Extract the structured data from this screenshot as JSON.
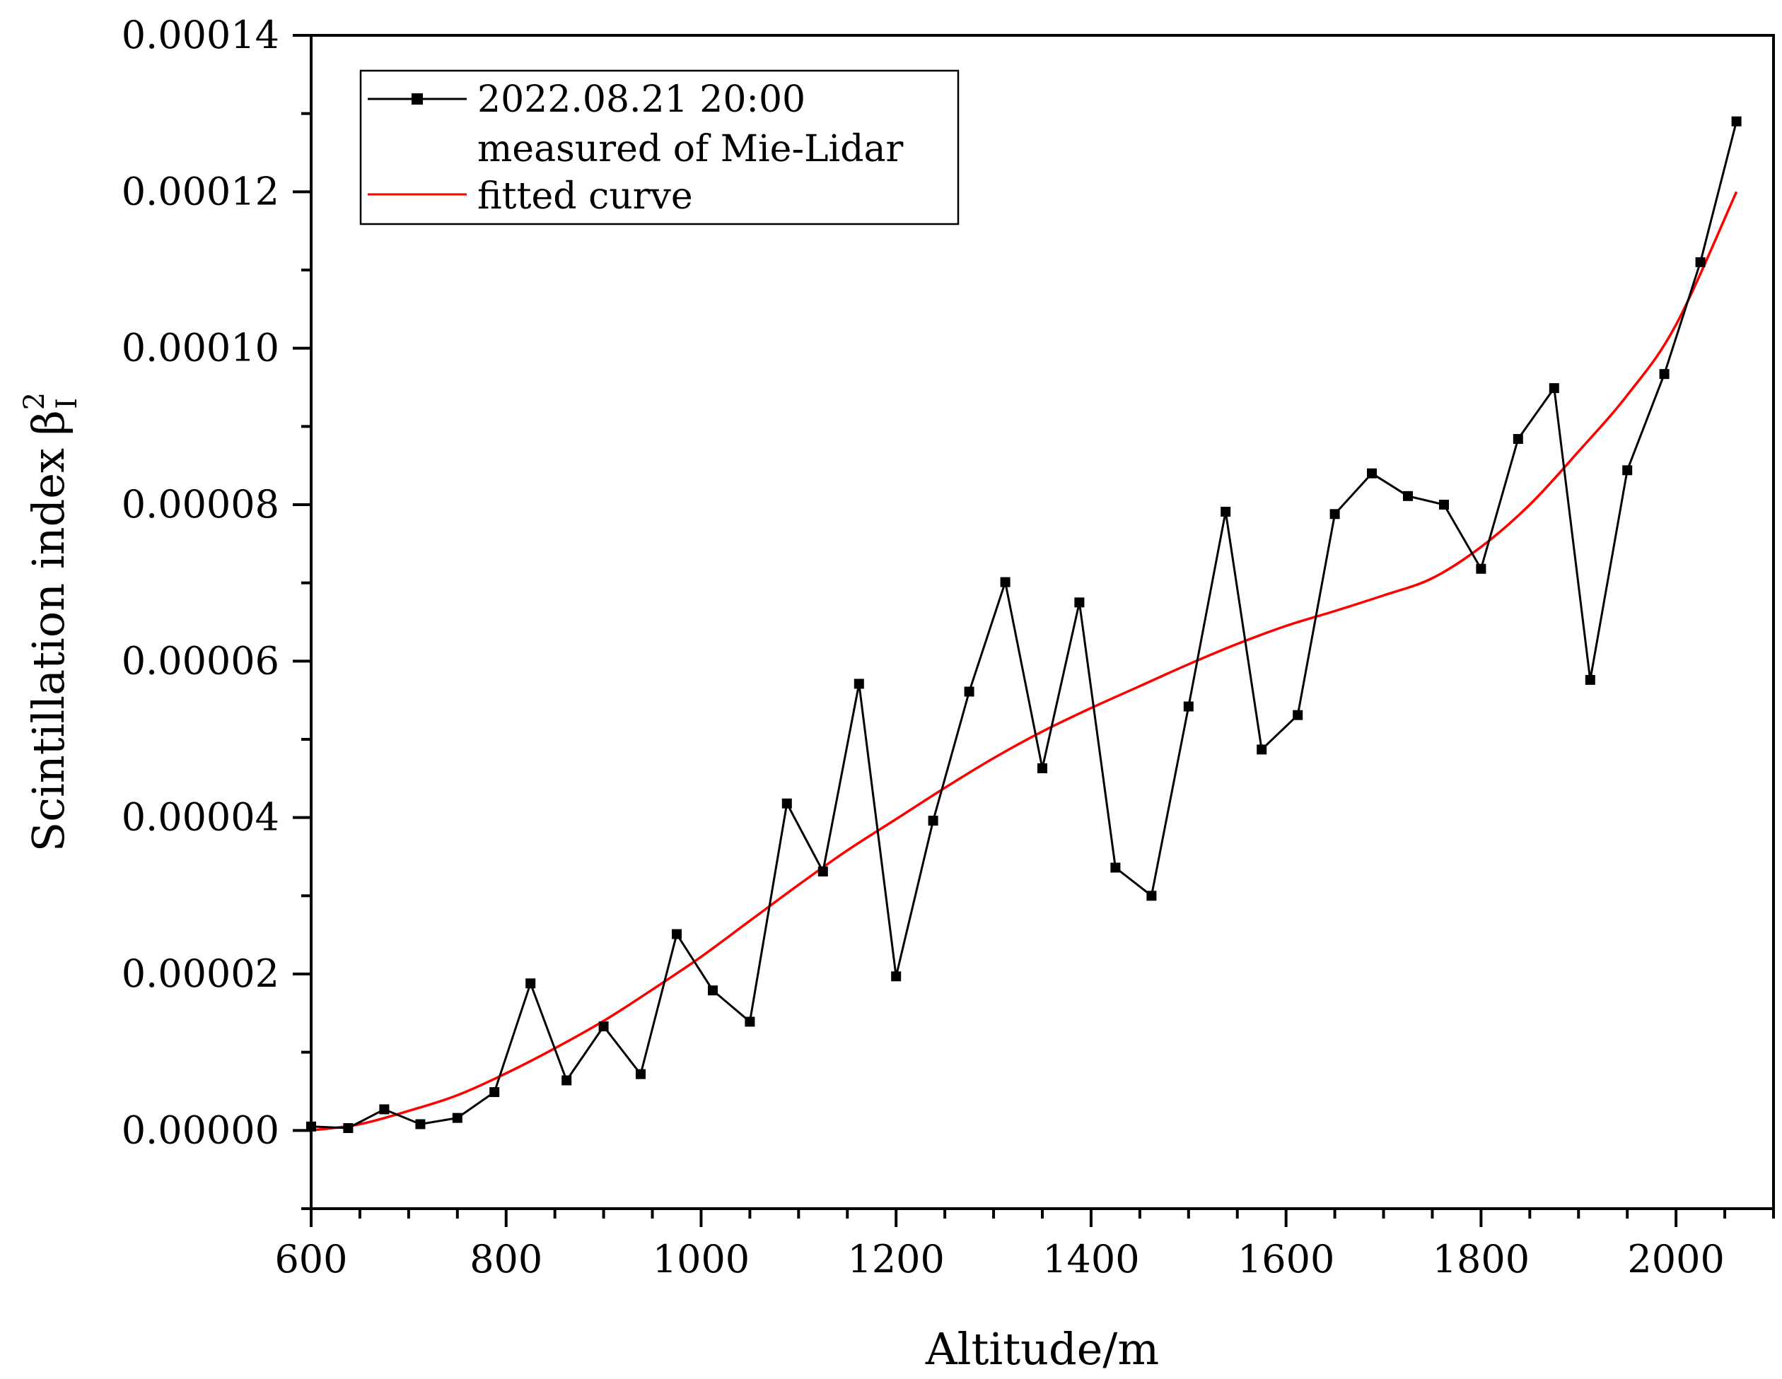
{
  "chart_data": {
    "type": "line",
    "xlabel": "Altitude/m",
    "ylabel": "Scintillation index",
    "ylabel_symbol": "β",
    "ylabel_sup": "2",
    "ylabel_sub": "I",
    "xlim": [
      600,
      2100
    ],
    "ylim": [
      -1e-05,
      0.00014
    ],
    "xticks": [
      600,
      800,
      1000,
      1200,
      1400,
      1600,
      1800,
      2000
    ],
    "xtick_labels": [
      "600",
      "800",
      "1000",
      "1200",
      "1400",
      "1600",
      "1800",
      "2000"
    ],
    "yticks": [
      0,
      2e-05,
      4e-05,
      6e-05,
      8e-05,
      0.0001,
      0.00012,
      0.00014
    ],
    "ytick_labels": [
      "0.00000",
      "0.00002",
      "0.00004",
      "0.00006",
      "0.00008",
      "0.00010",
      "0.00012",
      "0.00014"
    ],
    "legend": {
      "position": "top-left",
      "measured_line1": "2022.08.21 20:00",
      "measured_line2": "measured of Mie-Lidar",
      "fitted": "fitted curve"
    },
    "series": [
      {
        "name": "2022.08.21 20:00 measured of Mie-Lidar",
        "color": "#000000",
        "marker": "square",
        "x": [
          600,
          638,
          675,
          712,
          750,
          788,
          825,
          862,
          900,
          938,
          975,
          1012,
          1050,
          1088,
          1125,
          1162,
          1200,
          1238,
          1275,
          1312,
          1350,
          1388,
          1425,
          1462,
          1500,
          1538,
          1575,
          1612,
          1650,
          1688,
          1725,
          1762,
          1800,
          1838,
          1875,
          1912,
          1950,
          1988,
          2025,
          2062
        ],
        "y": [
          5e-07,
          3e-07,
          2.7e-06,
          8e-07,
          1.6e-06,
          4.9e-06,
          1.88e-05,
          6.4e-06,
          1.33e-05,
          7.2e-06,
          2.51e-05,
          1.79e-05,
          1.39e-05,
          4.18e-05,
          3.31e-05,
          5.71e-05,
          1.97e-05,
          3.96e-05,
          5.61e-05,
          7.01e-05,
          4.63e-05,
          6.75e-05,
          3.36e-05,
          3e-05,
          5.42e-05,
          7.91e-05,
          4.87e-05,
          5.31e-05,
          7.88e-05,
          8.4e-05,
          8.11e-05,
          8e-05,
          7.18e-05,
          8.84e-05,
          9.49e-05,
          5.76e-05,
          8.44e-05,
          9.67e-05,
          0.000111,
          0.000129
        ]
      },
      {
        "name": "fitted curve",
        "color": "#ff0000",
        "marker": "none",
        "x": [
          600,
          650,
          700,
          750,
          800,
          850,
          900,
          950,
          1000,
          1050,
          1100,
          1150,
          1200,
          1250,
          1300,
          1350,
          1400,
          1450,
          1500,
          1550,
          1600,
          1650,
          1700,
          1750,
          1800,
          1850,
          1900,
          1950,
          2000,
          2062
        ],
        "y": [
          0.0,
          8e-07,
          2.5e-06,
          4.5e-06,
          7.3e-06,
          1.05e-05,
          1.4e-05,
          1.8e-05,
          2.22e-05,
          2.68e-05,
          3.14e-05,
          3.58e-05,
          3.98e-05,
          4.38e-05,
          4.76e-05,
          5.1e-05,
          5.4e-05,
          5.68e-05,
          5.96e-05,
          6.22e-05,
          6.45e-05,
          6.64e-05,
          6.84e-05,
          7.06e-05,
          7.46e-05,
          8e-05,
          8.68e-05,
          9.4e-05,
          0.000103,
          0.00012
        ]
      }
    ]
  }
}
